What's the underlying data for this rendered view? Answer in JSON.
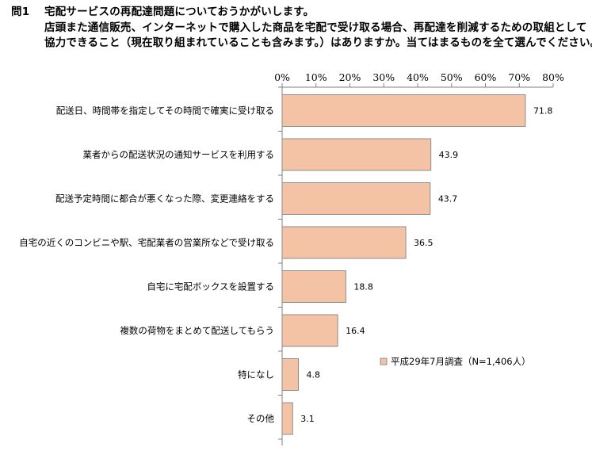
{
  "question": {
    "number": "問1",
    "line1": "宅配サービスの再配達問題についておうかがいします。",
    "line2": "店頭また通信販売、インターネットで購入した商品を宅配で受け取る場合、再配達を削減するための取組として",
    "line3": "協力できること（現在取り組まれていることも含みます。）はありますか。当てはまるものを全て選んでください。"
  },
  "chart_data": {
    "type": "bar",
    "orientation": "horizontal",
    "categories": [
      "配送日、時間帯を指定してその時間で確実に受け取る",
      "業者からの配送状況の通知サービスを利用する",
      "配送予定時間に都合が悪くなった際、変更連絡をする",
      "自宅の近くのコンビニや駅、宅配業者の営業所などで受け取る",
      "自宅に宅配ボックスを設置する",
      "複数の荷物をまとめて配送してもらう",
      "特になし",
      "その他"
    ],
    "values": [
      71.8,
      43.9,
      43.7,
      36.5,
      18.8,
      16.4,
      4.8,
      3.1
    ],
    "value_labels": [
      "71.8",
      "43.9",
      "43.7",
      "36.5",
      "18.8",
      "16.4",
      "4.8",
      "3.1"
    ],
    "series": [
      {
        "name": "平成29年7月調査（N=1,406人）",
        "values": [
          71.8,
          43.9,
          43.7,
          36.5,
          18.8,
          16.4,
          4.8,
          3.1
        ]
      }
    ],
    "xlim": [
      0,
      80
    ],
    "ticks": [
      0,
      10,
      20,
      30,
      40,
      50,
      60,
      70,
      80
    ],
    "tick_labels": [
      "0%",
      "10%",
      "20%",
      "30%",
      "40%",
      "50%",
      "60%",
      "70%",
      "80%"
    ],
    "axis_position": "top",
    "grid": false,
    "legend_position": "lower-right",
    "colors": {
      "bar_fill": "#f4c3a6",
      "bar_stroke": "#8c8c8c",
      "axis": "#808080"
    }
  }
}
